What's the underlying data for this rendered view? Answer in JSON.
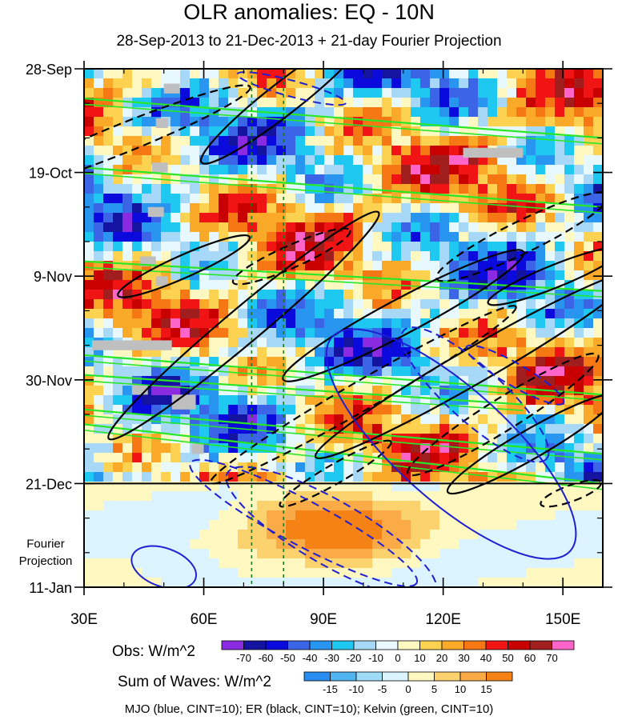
{
  "title": "OLR anomalies: EQ - 10N",
  "subtitle": "28-Sep-2013 to 21-Dec-2013 + 21-day Fourier Projection",
  "chart_data": {
    "type": "heatmap",
    "x_ticks": [
      "30E",
      "60E",
      "90E",
      "120E",
      "150E"
    ],
    "x_tick_values": [
      30,
      60,
      90,
      120,
      150
    ],
    "xlim": [
      30,
      160
    ],
    "y_ticks": [
      "28-Sep",
      "19-Oct",
      "9-Nov",
      "30-Nov",
      "21-Dec",
      "11-Jan"
    ],
    "y_tick_values": [
      0,
      21,
      42,
      63,
      84,
      105
    ],
    "ylim": [
      0,
      105
    ],
    "projection_label_line1": "Fourier",
    "projection_label_line2": "Projection",
    "projection_start_day": 84,
    "dashed_reference_lines": [
      72,
      80
    ],
    "obs_colorbar": {
      "label": "Obs: W/m^2",
      "levels": [
        "-70",
        "-60",
        "-50",
        "-40",
        "-30",
        "-20",
        "-10",
        "0",
        "10",
        "20",
        "30",
        "40",
        "50",
        "60",
        "70"
      ],
      "colors": [
        "#8a2be2",
        "#1414a0",
        "#0a0adc",
        "#3c64e6",
        "#2896f0",
        "#1ec8f0",
        "#a8d8f8",
        "#e8f8ff",
        "#fff8c0",
        "#fcd250",
        "#faaa28",
        "#f57814",
        "#f01414",
        "#c80000",
        "#a01e1e",
        "#ff64c8"
      ]
    },
    "waves_colorbar": {
      "label": "Sum of Waves: W/m^2",
      "levels": [
        "-15",
        "-10",
        "-5",
        "0",
        "5",
        "10",
        "15"
      ],
      "colors": [
        "#288cf0",
        "#50b4f0",
        "#a0dcf8",
        "#dcf4ff",
        "#fff8c0",
        "#fcd26e",
        "#faaa46",
        "#f58214"
      ]
    },
    "contours": [
      {
        "name": "MJO",
        "color": "#1e1ed2"
      },
      {
        "name": "ER",
        "color": "#000000"
      },
      {
        "name": "Kelvin",
        "color": "#28e628"
      }
    ]
  },
  "footer": "MJO (blue, CINT=10); ER (black, CINT=10); Kelvin (green, CINT=10)"
}
